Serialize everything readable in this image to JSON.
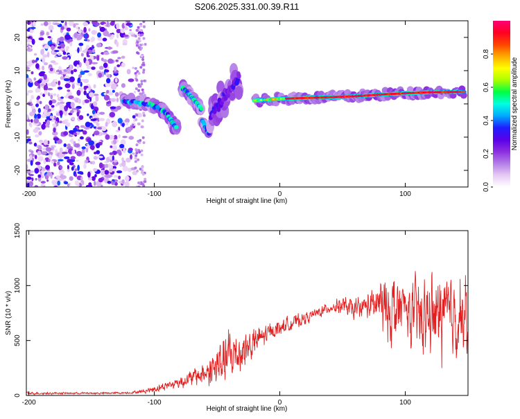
{
  "chart_data": [
    {
      "type": "heatmap",
      "title": "S206.2025.331.00.39.R11",
      "xlabel": "Height of straight line (km)",
      "ylabel": "Frequency (Hz)",
      "xlim": [
        -202,
        150
      ],
      "ylim": [
        -25,
        25
      ],
      "x_ticks": [
        -200,
        -100,
        0,
        100
      ],
      "y_ticks": [
        -20,
        -10,
        0,
        10,
        20
      ],
      "colorbar": {
        "label": "Normalized spectral amplitude",
        "range": [
          0,
          1
        ],
        "ticks": [
          0.0,
          0.2,
          0.4,
          0.6,
          0.8
        ],
        "colors": [
          "#ffffff",
          "#e6c8f4",
          "#b27ce6",
          "#8c2de0",
          "#5a00e8",
          "#1e1eff",
          "#00aaff",
          "#00ffe0",
          "#00ff44",
          "#aaff00",
          "#ffff00",
          "#ffaa00",
          "#ff4400",
          "#ff0022",
          "#ff0077"
        ]
      },
      "features": [
        {
          "name": "noise-region",
          "x_range": [
            -202,
            -108
          ],
          "y_range": [
            -25,
            25
          ],
          "amplitude": [
            0.05,
            0.4
          ]
        },
        {
          "name": "descending-streak-1",
          "x": [
            -125,
            -115,
            -105,
            -95,
            -90,
            -85,
            -82
          ],
          "y": [
            1,
            0.5,
            0,
            -1.5,
            -3,
            -6,
            -7.5
          ],
          "amplitude": 0.3
        },
        {
          "name": "descending-streak-2",
          "x": [
            -78,
            -74,
            -70,
            -66,
            -62
          ],
          "y": [
            5,
            3.5,
            2,
            0,
            -2
          ],
          "amplitude": 0.35
        },
        {
          "name": "descending-streak-3",
          "x": [
            -62,
            -59,
            -56
          ],
          "y": [
            -5,
            -7,
            -9
          ],
          "amplitude": 0.3
        },
        {
          "name": "ascending-streak",
          "x": [
            -55,
            -50,
            -45,
            -40,
            -36,
            -32
          ],
          "y": [
            -4,
            -1,
            2,
            4,
            6,
            8
          ],
          "amplitude": 0.2
        },
        {
          "name": "main-band",
          "x": [
            -20,
            0,
            20,
            40,
            60,
            80,
            100,
            120,
            148
          ],
          "y": [
            1,
            1.5,
            1.8,
            2,
            2.3,
            2.8,
            3.2,
            3.5,
            3.6
          ],
          "amplitude": [
            0.5,
            1.0
          ]
        }
      ]
    },
    {
      "type": "line",
      "xlabel": "Height of straight line (km)",
      "ylabel": "SNR (10 * v/v)",
      "xlim": [
        -202,
        150
      ],
      "ylim": [
        0,
        1500
      ],
      "x_ticks": [
        -200,
        -100,
        0,
        100
      ],
      "y_ticks": [
        0,
        500,
        1000,
        1500
      ],
      "series": [
        {
          "name": "SNR",
          "color": "#e02020",
          "x": [
            -202,
            -180,
            -160,
            -140,
            -120,
            -110,
            -100,
            -90,
            -80,
            -70,
            -60,
            -50,
            -45,
            -40,
            -35,
            -30,
            -25,
            -20,
            -15,
            -10,
            -5,
            0,
            10,
            20,
            30,
            40,
            50,
            55,
            60,
            65,
            70,
            75,
            80,
            85,
            90,
            95,
            100,
            105,
            110,
            115,
            120,
            125,
            130,
            135,
            140,
            145,
            150
          ],
          "baseline": [
            20,
            20,
            20,
            20,
            25,
            35,
            60,
            90,
            120,
            160,
            200,
            260,
            320,
            350,
            380,
            410,
            440,
            480,
            520,
            560,
            600,
            620,
            660,
            700,
            750,
            800,
            820,
            790,
            780,
            800,
            820,
            810,
            840,
            780,
            800,
            760,
            800,
            720,
            740,
            680,
            760,
            700,
            760,
            700,
            760,
            700,
            650
          ],
          "spread": [
            15,
            12,
            12,
            12,
            12,
            20,
            40,
            50,
            70,
            90,
            150,
            260,
            280,
            300,
            280,
            260,
            220,
            180,
            150,
            120,
            100,
            90,
            80,
            70,
            60,
            60,
            100,
            120,
            120,
            130,
            150,
            200,
            300,
            350,
            400,
            400,
            380,
            380,
            400,
            420,
            420,
            460,
            480,
            460,
            480,
            500,
            500
          ]
        }
      ]
    }
  ]
}
